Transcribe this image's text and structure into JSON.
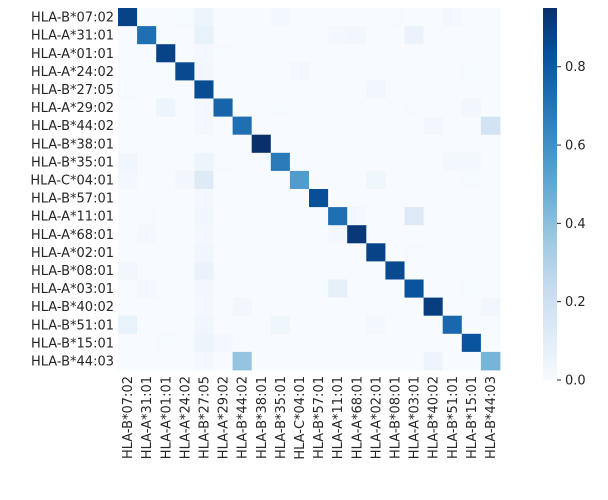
{
  "chart_data": {
    "type": "heatmap",
    "row_labels": [
      "HLA-B*07:02",
      "HLA-A*31:01",
      "HLA-A*01:01",
      "HLA-A*24:02",
      "HLA-B*27:05",
      "HLA-A*29:02",
      "HLA-B*44:02",
      "HLA-B*38:01",
      "HLA-B*35:01",
      "HLA-C*04:01",
      "HLA-B*57:01",
      "HLA-A*11:01",
      "HLA-A*68:01",
      "HLA-A*02:01",
      "HLA-B*08:01",
      "HLA-A*03:01",
      "HLA-B*40:02",
      "HLA-B*51:01",
      "HLA-B*15:01",
      "HLA-B*44:03"
    ],
    "col_labels": [
      "HLA-B*07:02",
      "HLA-A*31:01",
      "HLA-A*01:01",
      "HLA-A*24:02",
      "HLA-B*27:05",
      "HLA-A*29:02",
      "HLA-B*44:02",
      "HLA-B*38:01",
      "HLA-B*35:01",
      "HLA-C*04:01",
      "HLA-B*57:01",
      "HLA-A*11:01",
      "HLA-A*68:01",
      "HLA-A*02:01",
      "HLA-B*08:01",
      "HLA-A*03:01",
      "HLA-B*40:02",
      "HLA-B*51:01",
      "HLA-B*15:01",
      "HLA-B*44:03"
    ],
    "values": [
      [
        0.88,
        0.0,
        0.0,
        0.01,
        0.05,
        0.0,
        0.0,
        0.0,
        0.02,
        0.0,
        0.0,
        0.0,
        0.0,
        0.0,
        0.01,
        0.0,
        0.0,
        0.02,
        0.0,
        0.0
      ],
      [
        0.0,
        0.72,
        0.0,
        0.0,
        0.07,
        0.0,
        0.0,
        0.0,
        0.0,
        0.0,
        0.0,
        0.02,
        0.03,
        0.0,
        0.0,
        0.06,
        0.0,
        0.0,
        0.0,
        0.0
      ],
      [
        0.0,
        0.0,
        0.88,
        0.0,
        0.02,
        0.01,
        0.0,
        0.0,
        0.0,
        0.0,
        0.0,
        0.0,
        0.0,
        0.0,
        0.0,
        0.0,
        0.0,
        0.0,
        0.0,
        0.0
      ],
      [
        0.0,
        0.0,
        0.0,
        0.86,
        0.03,
        0.0,
        0.0,
        0.0,
        0.0,
        0.02,
        0.0,
        0.0,
        0.0,
        0.0,
        0.0,
        0.0,
        0.0,
        0.0,
        0.01,
        0.0
      ],
      [
        0.01,
        0.0,
        0.0,
        0.0,
        0.85,
        0.0,
        0.0,
        0.0,
        0.0,
        0.0,
        0.0,
        0.0,
        0.0,
        0.03,
        0.0,
        0.0,
        0.0,
        0.0,
        0.0,
        0.0
      ],
      [
        0.0,
        0.0,
        0.05,
        0.0,
        0.02,
        0.76,
        0.0,
        0.0,
        0.01,
        0.0,
        0.0,
        0.0,
        0.0,
        0.0,
        0.0,
        0.01,
        0.0,
        0.0,
        0.03,
        0.0
      ],
      [
        0.0,
        0.0,
        0.0,
        0.0,
        0.02,
        0.0,
        0.72,
        0.0,
        0.0,
        0.0,
        0.0,
        0.0,
        0.0,
        0.0,
        0.0,
        0.0,
        0.03,
        0.0,
        0.0,
        0.18
      ],
      [
        0.0,
        0.0,
        0.0,
        0.0,
        0.0,
        0.0,
        0.0,
        0.95,
        0.0,
        0.0,
        0.0,
        0.0,
        0.0,
        0.0,
        0.0,
        0.0,
        0.0,
        0.0,
        0.0,
        0.0
      ],
      [
        0.04,
        0.0,
        0.0,
        0.0,
        0.05,
        0.01,
        0.0,
        0.0,
        0.68,
        0.0,
        0.0,
        0.0,
        0.0,
        0.0,
        0.0,
        0.0,
        0.0,
        0.02,
        0.02,
        0.0
      ],
      [
        0.02,
        0.0,
        0.0,
        0.03,
        0.12,
        0.0,
        0.0,
        0.0,
        0.0,
        0.55,
        0.0,
        0.0,
        0.0,
        0.04,
        0.0,
        0.0,
        0.0,
        0.0,
        0.01,
        0.0
      ],
      [
        0.0,
        0.0,
        0.0,
        0.0,
        0.02,
        0.0,
        0.0,
        0.0,
        0.0,
        0.0,
        0.84,
        0.0,
        0.0,
        0.0,
        0.0,
        0.0,
        0.0,
        0.0,
        0.0,
        0.0
      ],
      [
        0.0,
        0.01,
        0.0,
        0.0,
        0.04,
        0.0,
        0.0,
        0.0,
        0.0,
        0.0,
        0.0,
        0.72,
        0.02,
        0.0,
        0.0,
        0.13,
        0.0,
        0.0,
        0.0,
        0.0
      ],
      [
        0.0,
        0.02,
        0.0,
        0.0,
        0.02,
        0.0,
        0.0,
        0.0,
        0.0,
        0.0,
        0.0,
        0.02,
        0.92,
        0.0,
        0.0,
        0.0,
        0.0,
        0.0,
        0.0,
        0.0
      ],
      [
        0.0,
        0.0,
        0.0,
        0.0,
        0.04,
        0.0,
        0.0,
        0.0,
        0.0,
        0.0,
        0.0,
        0.0,
        0.0,
        0.88,
        0.0,
        0.01,
        0.0,
        0.0,
        0.0,
        0.0
      ],
      [
        0.03,
        0.0,
        0.0,
        0.0,
        0.06,
        0.0,
        0.0,
        0.0,
        0.0,
        0.0,
        0.0,
        0.0,
        0.0,
        0.0,
        0.86,
        0.0,
        0.0,
        0.0,
        0.0,
        0.0
      ],
      [
        0.0,
        0.02,
        0.0,
        0.0,
        0.03,
        0.0,
        0.0,
        0.0,
        0.0,
        0.0,
        0.0,
        0.08,
        0.0,
        0.0,
        0.0,
        0.82,
        0.0,
        0.0,
        0.01,
        0.0
      ],
      [
        0.0,
        0.0,
        0.0,
        0.0,
        0.02,
        0.0,
        0.03,
        0.0,
        0.0,
        0.0,
        0.0,
        0.0,
        0.0,
        0.0,
        0.0,
        0.0,
        0.9,
        0.0,
        0.0,
        0.03
      ],
      [
        0.07,
        0.0,
        0.0,
        0.0,
        0.04,
        0.0,
        0.0,
        0.0,
        0.04,
        0.0,
        0.0,
        0.0,
        0.0,
        0.02,
        0.0,
        0.0,
        0.0,
        0.75,
        0.0,
        0.0
      ],
      [
        0.0,
        0.0,
        0.01,
        0.0,
        0.05,
        0.02,
        0.0,
        0.0,
        0.0,
        0.0,
        0.0,
        0.0,
        0.0,
        0.0,
        0.0,
        0.0,
        0.0,
        0.0,
        0.82,
        0.0
      ],
      [
        0.0,
        0.0,
        0.0,
        0.0,
        0.02,
        0.0,
        0.38,
        0.0,
        0.0,
        0.0,
        0.0,
        0.0,
        0.0,
        0.0,
        0.0,
        0.0,
        0.05,
        0.0,
        0.0,
        0.45
      ]
    ],
    "vmin": 0.0,
    "vmax": 0.95,
    "colormap": [
      "#f7fbff",
      "#deebf7",
      "#c6dbef",
      "#9ecae1",
      "#6baed6",
      "#4292c6",
      "#2171b5",
      "#08519c",
      "#08306b"
    ],
    "colorbar_ticks": [
      0.0,
      0.2,
      0.4,
      0.6,
      0.8
    ],
    "colorbar_tick_labels": [
      "0.0",
      "0.2",
      "0.4",
      "0.6",
      "0.8"
    ],
    "title": "",
    "xlabel": "",
    "ylabel": ""
  }
}
